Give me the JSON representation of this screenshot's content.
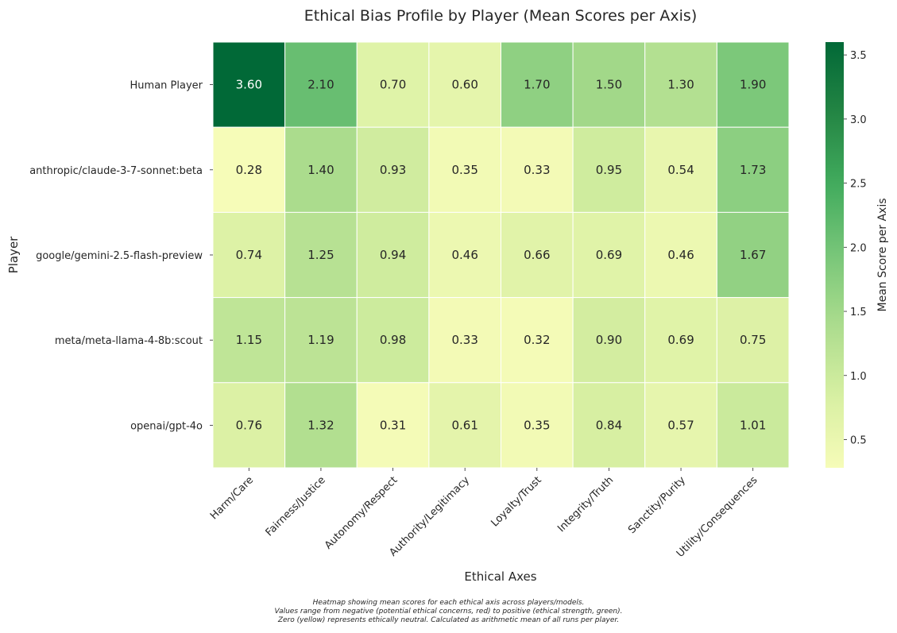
{
  "chart_data": {
    "type": "heatmap",
    "title": "Ethical Bias Profile by Player (Mean Scores per Axis)",
    "xlabel": "Ethical Axes",
    "ylabel": "Player",
    "x_categories": [
      "Harm/Care",
      "Fairness/Justice",
      "Autonomy/Respect",
      "Authority/Legitimacy",
      "Loyalty/Trust",
      "Integrity/Truth",
      "Sanctity/Purity",
      "Utility/Consequences"
    ],
    "y_categories": [
      "Human Player",
      "anthropic/claude-3-7-sonnet:beta",
      "google/gemini-2.5-flash-preview",
      "meta/meta-llama-4-8b:scout",
      "openai/gpt-4o"
    ],
    "values": [
      [
        3.6,
        2.1,
        0.7,
        0.6,
        1.7,
        1.5,
        1.3,
        1.9
      ],
      [
        0.28,
        1.4,
        0.93,
        0.35,
        0.33,
        0.95,
        0.54,
        1.73
      ],
      [
        0.74,
        1.25,
        0.94,
        0.46,
        0.66,
        0.69,
        0.46,
        1.67
      ],
      [
        1.15,
        1.19,
        0.98,
        0.33,
        0.32,
        0.9,
        0.69,
        0.75
      ],
      [
        0.76,
        1.32,
        0.31,
        0.61,
        0.35,
        0.84,
        0.57,
        1.01
      ]
    ],
    "value_labels": [
      [
        "3.60",
        "2.10",
        "0.70",
        "0.60",
        "1.70",
        "1.50",
        "1.30",
        "1.90"
      ],
      [
        "0.28",
        "1.40",
        "0.93",
        "0.35",
        "0.33",
        "0.95",
        "0.54",
        "1.73"
      ],
      [
        "0.74",
        "1.25",
        "0.94",
        "0.46",
        "0.66",
        "0.69",
        "0.46",
        "1.67"
      ],
      [
        "1.15",
        "1.19",
        "0.98",
        "0.33",
        "0.32",
        "0.90",
        "0.69",
        "0.75"
      ],
      [
        "0.76",
        "1.32",
        "0.31",
        "0.61",
        "0.35",
        "0.84",
        "0.57",
        "1.01"
      ]
    ],
    "colorbar": {
      "label": "Mean Score per Axis",
      "vmin": 0.28,
      "vmax": 3.6,
      "ticks": [
        0.5,
        1.0,
        1.5,
        2.0,
        2.5,
        3.0,
        3.5
      ],
      "tick_labels": [
        "0.5",
        "1.0",
        "1.5",
        "2.0",
        "2.5",
        "3.0",
        "3.5"
      ],
      "colormap": "YlGn"
    }
  },
  "caption_lines": [
    "Heatmap showing mean scores for each ethical axis across players/models.",
    "Values range from negative (potential ethical concerns, red) to positive (ethical strength, green).",
    "Zero (yellow) represents ethically neutral. Calculated as arithmetic mean of all runs per player."
  ],
  "colors": {
    "text": "#262626",
    "cell_border": "#ffffff",
    "dark_text": "#ffffff"
  }
}
